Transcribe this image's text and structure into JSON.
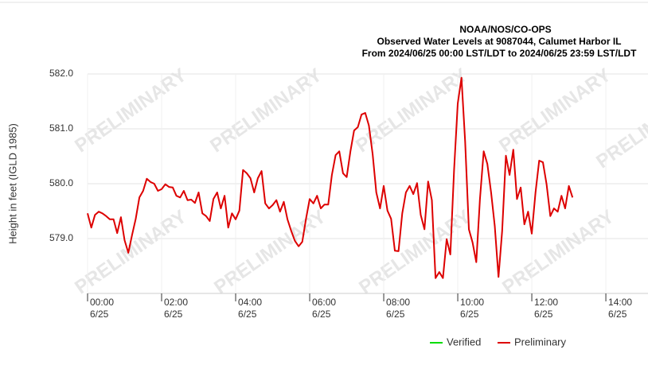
{
  "chart_data": {
    "type": "line",
    "title": [
      "NOAA/NOS/CO-OPS",
      "Observed Water Levels at 9087044, Calumet Harbor IL",
      "From 2024/06/25 00:00 LST/LDT to 2024/06/25 23:59 LST/LDT"
    ],
    "ylabel": "Height in feet (IGLD 1985)",
    "watermark": "PRELIMINARY",
    "xlim": [
      0,
      15.16
    ],
    "xticks": [
      {
        "value": 0,
        "label": "00:00",
        "date": "6/25"
      },
      {
        "value": 2,
        "label": "02:00",
        "date": "6/25"
      },
      {
        "value": 4,
        "label": "04:00",
        "date": "6/25"
      },
      {
        "value": 6,
        "label": "06:00",
        "date": "6/25"
      },
      {
        "value": 8,
        "label": "08:00",
        "date": "6/25"
      },
      {
        "value": 10,
        "label": "10:00",
        "date": "6/25"
      },
      {
        "value": 12,
        "label": "12:00",
        "date": "6/25"
      },
      {
        "value": 14,
        "label": "14:00",
        "date": "6/25"
      }
    ],
    "ylim": [
      578,
      582
    ],
    "yticks": [
      {
        "value": 579,
        "label": "579.0"
      },
      {
        "value": 580,
        "label": "580.0"
      },
      {
        "value": 581,
        "label": "581.0"
      },
      {
        "value": 582,
        "label": "582.0"
      }
    ],
    "grid": true,
    "legend": "bottom",
    "x": [
      0.0,
      0.1,
      0.2,
      0.3,
      0.4,
      0.5,
      0.6,
      0.7,
      0.8,
      0.9,
      1.0,
      1.1,
      1.2,
      1.3,
      1.4,
      1.5,
      1.6,
      1.7,
      1.8,
      1.9,
      2.0,
      2.1,
      2.2,
      2.3,
      2.4,
      2.5,
      2.6,
      2.7,
      2.8,
      2.9,
      3.0,
      3.1,
      3.2,
      3.3,
      3.4,
      3.5,
      3.6,
      3.7,
      3.8,
      3.9,
      4.0,
      4.1,
      4.2,
      4.3,
      4.4,
      4.5,
      4.6,
      4.7,
      4.8,
      4.9,
      5.0,
      5.1,
      5.2,
      5.3,
      5.4,
      5.5,
      5.6,
      5.7,
      5.8,
      5.9,
      6.0,
      6.1,
      6.2,
      6.3,
      6.4,
      6.5,
      6.6,
      6.7,
      6.8,
      6.9,
      7.0,
      7.1,
      7.2,
      7.3,
      7.4,
      7.5,
      7.6,
      7.7,
      7.8,
      7.9,
      8.0,
      8.1,
      8.2,
      8.3,
      8.4,
      8.5,
      8.6,
      8.7,
      8.8,
      8.9,
      9.0,
      9.1,
      9.2,
      9.3,
      9.4,
      9.5,
      9.6,
      9.7,
      9.8,
      9.9,
      10.0,
      10.1,
      10.2,
      10.3,
      10.4,
      10.5,
      10.6,
      10.7,
      10.8,
      10.9,
      11.0,
      11.1,
      11.2,
      11.3,
      11.4,
      11.5,
      11.6,
      11.7,
      11.8,
      11.9,
      12.0,
      12.1,
      12.2,
      12.3,
      12.4,
      12.5,
      12.6,
      12.7,
      12.8,
      12.9,
      13.0,
      13.1
    ],
    "series": [
      {
        "name": "Verified",
        "color": "#00dd00",
        "values": [
          null,
          null,
          null,
          null,
          null,
          null,
          null,
          null,
          null,
          null,
          null,
          null,
          null,
          null,
          null,
          null,
          null,
          null,
          null,
          null,
          null,
          null,
          null,
          null,
          null,
          null,
          null,
          null,
          null,
          null,
          null,
          null,
          null,
          null,
          null,
          null,
          null,
          null,
          null,
          null,
          null,
          null,
          null,
          null,
          null,
          null,
          null,
          null,
          null,
          null,
          null,
          null,
          null,
          null,
          null,
          null,
          null,
          null,
          null,
          null,
          null,
          null,
          null,
          null,
          null,
          null,
          null,
          null,
          null,
          null,
          null,
          null,
          null,
          null,
          null,
          null,
          null,
          null,
          null,
          null,
          null,
          null,
          null,
          null,
          null,
          null,
          null,
          null,
          null,
          null,
          null,
          null,
          null,
          null,
          null,
          null,
          null,
          null,
          null,
          null,
          null,
          null,
          null,
          null,
          null,
          null,
          null,
          null,
          null,
          null,
          null,
          null,
          null,
          null,
          null,
          null,
          null,
          null,
          null,
          null,
          null,
          null,
          null,
          null,
          null,
          null,
          null,
          null,
          null,
          null,
          null,
          null
        ]
      },
      {
        "name": "Preliminary",
        "color": "#dd0000",
        "values": [
          579.46,
          579.2,
          579.43,
          579.49,
          579.46,
          579.41,
          579.35,
          579.35,
          579.1,
          579.39,
          578.97,
          578.74,
          579.06,
          579.36,
          579.75,
          579.87,
          580.09,
          580.03,
          580.0,
          579.87,
          579.9,
          579.99,
          579.94,
          579.93,
          579.78,
          579.75,
          579.87,
          579.7,
          579.71,
          579.65,
          579.84,
          579.46,
          579.41,
          579.32,
          579.72,
          579.84,
          579.55,
          579.78,
          579.2,
          579.46,
          579.35,
          579.51,
          580.25,
          580.19,
          580.1,
          579.84,
          580.1,
          580.23,
          579.64,
          579.55,
          579.61,
          579.7,
          579.49,
          579.67,
          579.35,
          579.14,
          578.96,
          578.86,
          578.94,
          579.36,
          579.72,
          579.64,
          579.78,
          579.55,
          579.62,
          579.62,
          580.16,
          580.52,
          580.59,
          580.19,
          580.12,
          580.59,
          580.97,
          581.03,
          581.26,
          581.29,
          581.06,
          580.54,
          579.84,
          579.55,
          579.96,
          579.51,
          579.36,
          578.78,
          578.77,
          579.46,
          579.84,
          579.96,
          579.81,
          580.01,
          579.43,
          579.17,
          580.04,
          579.7,
          578.28,
          578.39,
          578.28,
          578.99,
          578.71,
          580.25,
          581.46,
          581.93,
          580.77,
          579.17,
          578.93,
          578.57,
          579.72,
          580.59,
          580.36,
          579.84,
          579.23,
          578.3,
          579.14,
          580.51,
          580.16,
          580.62,
          579.72,
          579.93,
          579.26,
          579.49,
          579.09,
          579.84,
          580.42,
          580.39,
          579.99,
          579.41,
          579.55,
          579.49,
          579.78,
          579.55,
          579.96,
          579.75
        ]
      }
    ]
  }
}
